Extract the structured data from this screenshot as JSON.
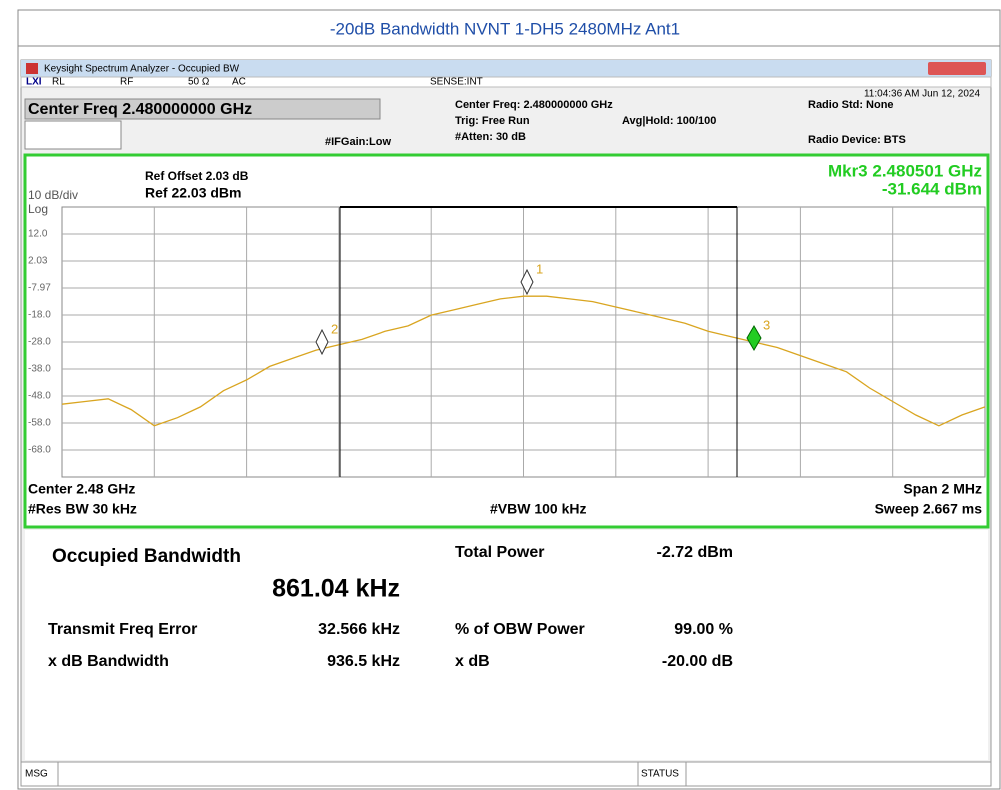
{
  "title": "-20dB Bandwidth NVNT 1-DH5 2480MHz Ant1",
  "window": {
    "title": "Keysight Spectrum Analyzer - Occupied BW"
  },
  "status": {
    "rl": "RL",
    "rf": "RF",
    "impedance": "50 Ω",
    "coupling": "AC",
    "sense": "SENSE:INT",
    "time": "11:04:36 AM Jun 12, 2024"
  },
  "header": {
    "center": "Center Freq 2.480000000 GHz",
    "ifgain": "#IFGain:Low",
    "center_freq": "Center Freq: 2.480000000 GHz",
    "trig": "Trig: Free Run",
    "atten": "#Atten: 30 dB",
    "avg": "Avg|Hold: 100/100",
    "radio_std": "Radio Std: None",
    "radio_device": "Radio Device: BTS"
  },
  "plot": {
    "ref_offset": "Ref Offset 2.03 dB",
    "ref": "Ref 22.03 dBm",
    "scale": "10 dB/div",
    "log": "Log",
    "marker_freq": "Mkr3  2.480501 GHz",
    "marker_value": "-31.644 dBm",
    "marker_labels": [
      "1",
      "2",
      "3"
    ],
    "ylim": [
      22.03,
      -77.97
    ],
    "yticks": [
      {
        "value": 12.03,
        "label": "12.0"
      },
      2.03,
      -7.97,
      {
        "value": -17.97,
        "label": "-18.0"
      },
      {
        "value": -27.97,
        "label": "-28.0"
      },
      {
        "value": -37.97,
        "label": "-38.0"
      },
      {
        "value": -47.97,
        "label": "-48.0"
      },
      {
        "value": -57.97,
        "label": "-58.0"
      },
      {
        "value": -67.97,
        "label": "-68.0"
      }
    ],
    "trace": {
      "color": "#d9a520",
      "values": [
        -51,
        -50,
        -49,
        -53,
        -59,
        -56,
        -52,
        -46,
        -42,
        -37,
        -34,
        -31,
        -29,
        -27,
        -24,
        -22,
        -18,
        -16,
        -14,
        -12,
        -11,
        -11,
        -12,
        -13,
        -15,
        -17,
        -19,
        -21,
        -24,
        -26,
        -28,
        -30,
        -33,
        -36,
        -39,
        -45,
        -50,
        -55,
        -59,
        -55,
        -52
      ]
    },
    "footer": {
      "center": "Center  2.48 GHz",
      "rbw": "#Res BW  30 kHz",
      "vbw": "#VBW  100 kHz",
      "span": "Span 2 MHz",
      "sweep": "Sweep  2.667 ms"
    }
  },
  "results": {
    "obw_label": "Occupied Bandwidth",
    "obw_value": "861.04 kHz",
    "tfe_label": "Transmit Freq Error",
    "tfe_value": "32.566 kHz",
    "xdb_bw_label": "x dB Bandwidth",
    "xdb_bw_value": "936.5 kHz",
    "total_power_label": "Total Power",
    "total_power_value": "-2.72 dBm",
    "obw_power_label": "% of OBW Power",
    "obw_power_value": "99.00 %",
    "xdb_label": "x dB",
    "xdb_value": "-20.00 dB"
  },
  "bottom": {
    "msg": "MSG",
    "status": "STATUS"
  }
}
